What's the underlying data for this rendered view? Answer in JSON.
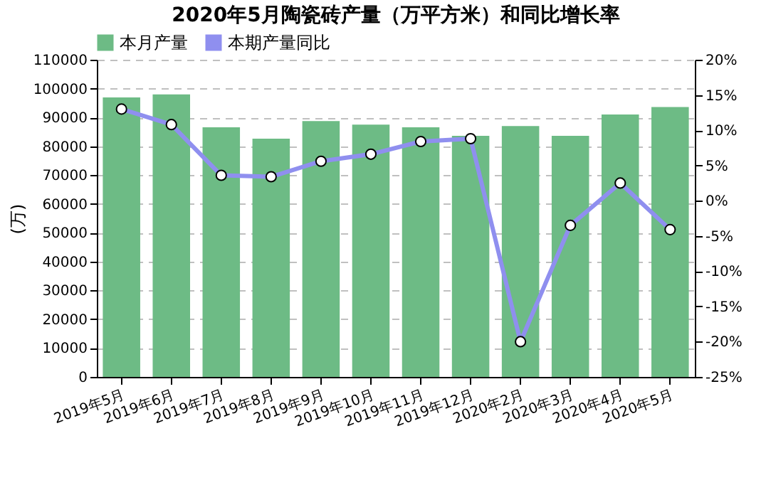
{
  "chart_data": {
    "type": "bar",
    "title": "2020年5月陶瓷砖产量（万平方米）和同比增长率",
    "ylabel": "(万)",
    "categories": [
      "2019年5月",
      "2019年6月",
      "2019年7月",
      "2019年8月",
      "2019年9月",
      "2019年10月",
      "2019年11月",
      "2019年12月",
      "2020年2月",
      "2020年3月",
      "2020年4月",
      "2020年5月"
    ],
    "series": [
      {
        "name": "本月产量",
        "color": "#6dbb85",
        "values": [
          96900,
          98000,
          86600,
          82600,
          88700,
          87500,
          86600,
          83600,
          87000,
          83600,
          91000,
          93600
        ]
      },
      {
        "name": "本期产量同比",
        "type": "line",
        "axis": "y2",
        "color": "#8f8fef",
        "marker": "circle",
        "values": [
          13.0,
          10.8,
          3.6,
          3.4,
          5.6,
          6.6,
          8.4,
          8.8,
          -20.0,
          -3.5,
          2.5,
          -4.1
        ]
      }
    ],
    "ylim": [
      0,
      110000
    ],
    "yticks": [
      0,
      10000,
      20000,
      30000,
      40000,
      50000,
      60000,
      70000,
      80000,
      90000,
      100000,
      110000
    ],
    "y2lim": [
      -25,
      20
    ],
    "y2ticks": [
      {
        "value": -25,
        "label": "-25%"
      },
      {
        "value": -20,
        "label": "-20%"
      },
      {
        "value": -15,
        "label": "-15%"
      },
      {
        "value": -10,
        "label": "-10%"
      },
      {
        "value": -5,
        "label": "-5%"
      },
      {
        "value": 0,
        "label": "0%"
      },
      {
        "value": 5,
        "label": "5%"
      },
      {
        "value": 10,
        "label": "10%"
      },
      {
        "value": 15,
        "label": "15%"
      },
      {
        "value": 20,
        "label": "20%"
      }
    ],
    "grid": "y",
    "legend": "top"
  }
}
